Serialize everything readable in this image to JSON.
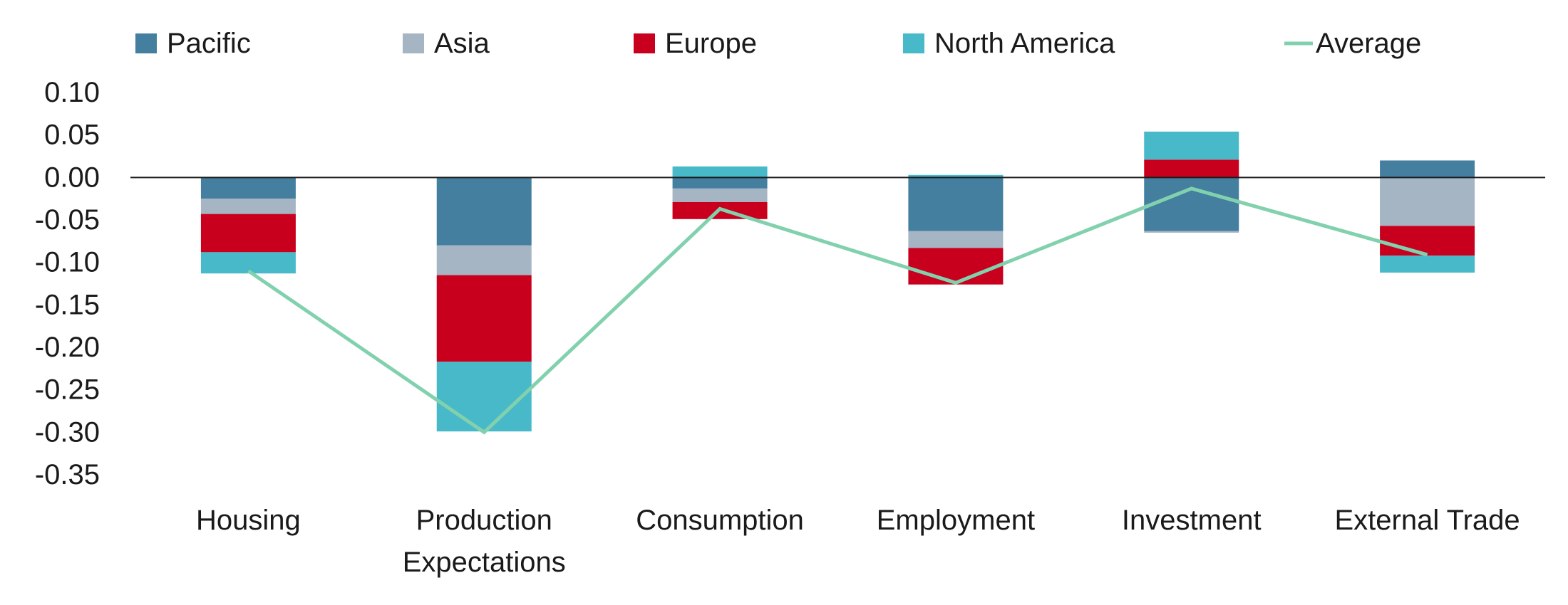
{
  "chart_data": {
    "type": "bar",
    "stacked": true,
    "categories": [
      [
        "Housing"
      ],
      [
        "Production",
        "Expectations"
      ],
      [
        "Consumption"
      ],
      [
        "Employment"
      ],
      [
        "Investment"
      ],
      [
        "External Trade"
      ]
    ],
    "series": [
      {
        "name": "Pacific",
        "color": "#447f9f",
        "values": [
          -0.025,
          -0.08,
          -0.013,
          -0.063,
          -0.063,
          0.02
        ]
      },
      {
        "name": "Asia",
        "color": "#a5b5c3",
        "values": [
          -0.018,
          -0.035,
          -0.016,
          -0.02,
          -0.002,
          -0.057
        ]
      },
      {
        "name": "Europe",
        "color": "#c8001e",
        "values": [
          -0.045,
          -0.102,
          -0.02,
          -0.043,
          0.021,
          -0.035
        ]
      },
      {
        "name": "North America",
        "color": "#47b9c8",
        "values": [
          -0.025,
          -0.082,
          0.013,
          0.003,
          0.033,
          -0.02
        ]
      }
    ],
    "line": {
      "name": "Average",
      "color": "#82d1ae",
      "values": [
        -0.11,
        -0.3,
        -0.037,
        -0.124,
        -0.013,
        -0.091
      ]
    },
    "ylim": [
      -0.35,
      0.1
    ],
    "yticks": [
      "0.10",
      "0.05",
      "0.00",
      "-0.05",
      "-0.10",
      "-0.15",
      "-0.20",
      "-0.25",
      "-0.30",
      "-0.35"
    ],
    "ytick_values": [
      0.1,
      0.05,
      0,
      -0.05,
      -0.1,
      -0.15,
      -0.2,
      -0.25,
      -0.3,
      -0.35
    ],
    "legend_position": "top",
    "grid": false,
    "title": "",
    "xlabel": "",
    "ylabel": ""
  }
}
